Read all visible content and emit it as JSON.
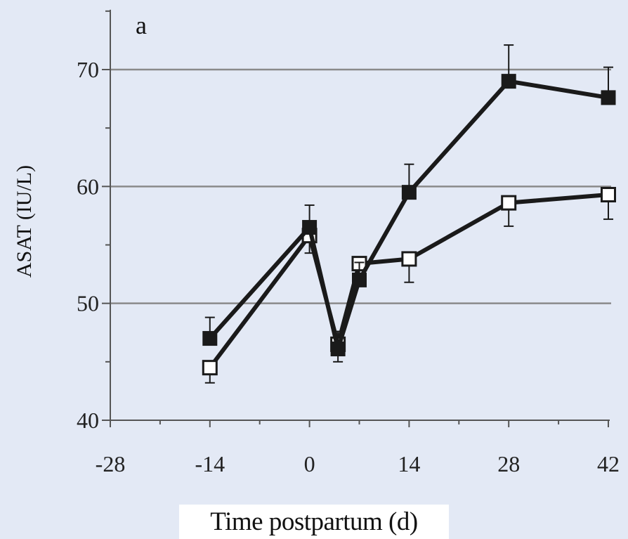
{
  "chart_data": {
    "type": "line",
    "panel_label": "a",
    "xlabel": "Time postpartum (d)",
    "ylabel": "ASAT (IU/L)",
    "xlim": [
      -28,
      42
    ],
    "ylim": [
      40,
      75
    ],
    "xticks": [
      -28,
      -14,
      0,
      14,
      28,
      42
    ],
    "yticks": [
      40,
      50,
      60,
      70
    ],
    "gridlines_y": [
      50,
      60,
      70
    ],
    "x": [
      -14,
      0,
      4,
      7,
      14,
      28,
      42
    ],
    "series": [
      {
        "marker": "filled-square",
        "color": "#1a1a1a",
        "values": [
          47.0,
          56.5,
          46.1,
          52.0,
          59.5,
          69.0,
          67.6
        ],
        "errors": [
          1.8,
          1.9,
          1.5,
          1.5,
          2.4,
          3.1,
          2.6
        ]
      },
      {
        "marker": "open-square",
        "color": "#1a1a1a",
        "values": [
          44.5,
          55.8,
          46.5,
          53.4,
          53.8,
          58.6,
          59.3
        ],
        "errors": [
          1.3,
          1.5,
          1.5,
          1.2,
          2.0,
          2.0,
          2.1
        ]
      }
    ]
  }
}
